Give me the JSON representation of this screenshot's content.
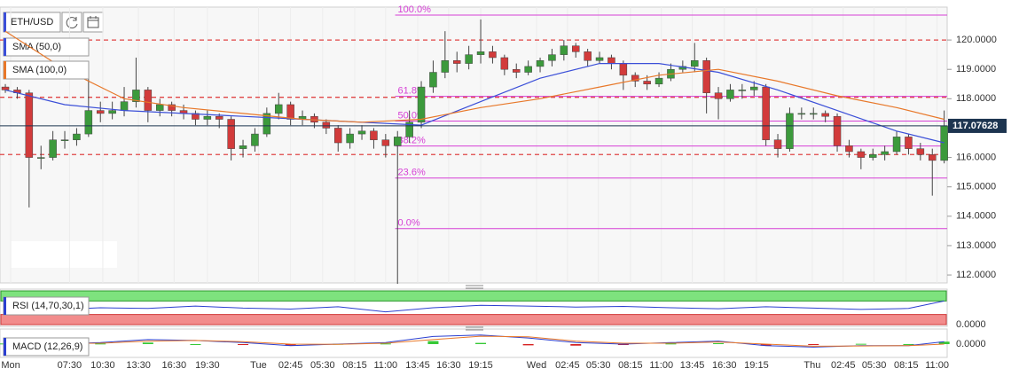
{
  "toolbar": {
    "symbol": "ETH/USD"
  },
  "chart_data": [
    {
      "type": "candlestick",
      "xlim": [
        -0.45,
        79.25
      ],
      "xticks": [
        {
          "value": 0.45,
          "label": "Mon"
        },
        {
          "value": 5.4,
          "label": "07:30"
        },
        {
          "value": 8.2,
          "label": "10:30"
        },
        {
          "value": 11.2,
          "label": "13:30"
        },
        {
          "value": 14.2,
          "label": "16:30"
        },
        {
          "value": 17.0,
          "label": "19:30"
        },
        {
          "value": 21.3,
          "label": "Tue"
        },
        {
          "value": 24.0,
          "label": "02:45"
        },
        {
          "value": 26.7,
          "label": "05:30"
        },
        {
          "value": 29.4,
          "label": "08:15"
        },
        {
          "value": 32.0,
          "label": "11:00"
        },
        {
          "value": 34.7,
          "label": "13:45"
        },
        {
          "value": 37.3,
          "label": "16:30"
        },
        {
          "value": 40.0,
          "label": "19:15"
        },
        {
          "value": 44.7,
          "label": "Wed"
        },
        {
          "value": 47.3,
          "label": "02:45"
        },
        {
          "value": 49.9,
          "label": "05:30"
        },
        {
          "value": 52.6,
          "label": "08:15"
        },
        {
          "value": 55.2,
          "label": "11:00"
        },
        {
          "value": 57.8,
          "label": "13:45"
        },
        {
          "value": 60.5,
          "label": "16:30"
        },
        {
          "value": 63.2,
          "label": "19:15"
        },
        {
          "value": 67.9,
          "label": "Thu"
        },
        {
          "value": 70.5,
          "label": "02:45"
        },
        {
          "value": 73.1,
          "label": "05:30"
        },
        {
          "value": 75.8,
          "label": "08:15"
        },
        {
          "value": 78.4,
          "label": "11:00"
        }
      ],
      "ylim": [
        111.73,
        121.12
      ],
      "yticks": [
        {
          "value": 112,
          "label": "112.0000"
        },
        {
          "value": 113,
          "label": "113.0000"
        },
        {
          "value": 114,
          "label": "114.0000"
        },
        {
          "value": 115,
          "label": "115.0000"
        },
        {
          "value": 116,
          "label": "116.0000"
        },
        {
          "value": 117,
          "label": "117.0000"
        },
        {
          "value": 118,
          "label": "118.0000"
        },
        {
          "value": 119,
          "label": "119.0000"
        },
        {
          "value": 120,
          "label": "120.0000"
        }
      ],
      "up_color": "#3c9a3c",
      "down_color": "#d23b3b",
      "ohlc": [
        [
          118.4,
          118.5,
          118.2,
          118.3
        ],
        [
          118.3,
          118.4,
          118.0,
          118.2
        ],
        [
          118.2,
          118.3,
          114.3,
          116.0
        ],
        [
          116.0,
          116.4,
          115.6,
          116.0
        ],
        [
          116.0,
          116.9,
          115.9,
          116.6
        ],
        [
          116.6,
          116.9,
          116.3,
          116.6
        ],
        [
          116.6,
          117.0,
          116.4,
          116.8
        ],
        [
          116.8,
          118.7,
          116.7,
          117.6
        ],
        [
          117.6,
          117.9,
          117.2,
          117.5
        ],
        [
          117.5,
          117.9,
          117.3,
          117.6
        ],
        [
          117.6,
          118.4,
          117.4,
          117.9
        ],
        [
          117.9,
          119.4,
          117.7,
          118.3
        ],
        [
          118.3,
          118.4,
          117.2,
          117.6
        ],
        [
          117.6,
          118.0,
          117.4,
          117.8
        ],
        [
          117.8,
          117.9,
          117.4,
          117.6
        ],
        [
          117.6,
          117.8,
          117.3,
          117.5
        ],
        [
          117.5,
          117.6,
          117.1,
          117.3
        ],
        [
          117.3,
          117.6,
          117.1,
          117.4
        ],
        [
          117.4,
          117.5,
          117.0,
          117.3
        ],
        [
          117.3,
          117.4,
          115.9,
          116.3
        ],
        [
          116.3,
          116.6,
          116.0,
          116.4
        ],
        [
          116.4,
          117.0,
          116.2,
          116.8
        ],
        [
          116.8,
          117.7,
          116.7,
          117.5
        ],
        [
          117.5,
          118.2,
          117.3,
          117.8
        ],
        [
          117.8,
          117.9,
          117.1,
          117.3
        ],
        [
          117.3,
          117.6,
          117.1,
          117.4
        ],
        [
          117.4,
          117.5,
          117.0,
          117.2
        ],
        [
          117.2,
          117.3,
          116.8,
          117.0
        ],
        [
          117.0,
          117.1,
          116.2,
          116.5
        ],
        [
          116.5,
          117.0,
          116.3,
          116.8
        ],
        [
          116.8,
          117.1,
          116.6,
          116.9
        ],
        [
          116.9,
          117.0,
          116.3,
          116.6
        ],
        [
          116.6,
          116.8,
          116.0,
          116.4
        ],
        [
          116.4,
          116.9,
          111.7,
          116.7
        ],
        [
          116.7,
          117.6,
          116.5,
          117.2
        ],
        [
          117.2,
          118.6,
          117.0,
          118.4
        ],
        [
          118.4,
          119.3,
          118.2,
          118.9
        ],
        [
          118.9,
          120.3,
          118.7,
          119.3
        ],
        [
          119.3,
          119.6,
          118.9,
          119.2
        ],
        [
          119.2,
          119.8,
          119.0,
          119.5
        ],
        [
          119.5,
          120.7,
          119.2,
          119.6
        ],
        [
          119.6,
          119.8,
          119.2,
          119.4
        ],
        [
          119.4,
          119.5,
          118.8,
          119.0
        ],
        [
          119.0,
          119.2,
          118.7,
          118.9
        ],
        [
          118.9,
          119.3,
          118.8,
          119.1
        ],
        [
          119.1,
          119.4,
          118.9,
          119.3
        ],
        [
          119.3,
          119.7,
          119.1,
          119.5
        ],
        [
          119.5,
          120.0,
          119.3,
          119.8
        ],
        [
          119.8,
          119.9,
          119.4,
          119.6
        ],
        [
          119.6,
          119.7,
          119.1,
          119.3
        ],
        [
          119.3,
          119.6,
          119.2,
          119.4
        ],
        [
          119.4,
          119.5,
          119.0,
          119.2
        ],
        [
          119.2,
          119.3,
          118.3,
          118.8
        ],
        [
          118.8,
          118.9,
          118.4,
          118.6
        ],
        [
          118.6,
          118.8,
          118.3,
          118.5
        ],
        [
          118.5,
          118.9,
          118.4,
          118.7
        ],
        [
          118.7,
          119.2,
          118.6,
          119.0
        ],
        [
          119.0,
          119.3,
          118.9,
          119.1
        ],
        [
          119.1,
          119.9,
          118.9,
          119.3
        ],
        [
          119.3,
          119.4,
          117.5,
          118.2
        ],
        [
          118.2,
          118.4,
          117.3,
          118.0
        ],
        [
          118.0,
          118.5,
          117.9,
          118.3
        ],
        [
          118.3,
          118.5,
          118.0,
          118.3
        ],
        [
          118.3,
          118.6,
          118.1,
          118.4
        ],
        [
          118.4,
          118.5,
          116.4,
          116.6
        ],
        [
          116.6,
          116.8,
          116.0,
          116.3
        ],
        [
          116.3,
          117.7,
          116.2,
          117.5
        ],
        [
          117.5,
          117.7,
          117.3,
          117.5
        ],
        [
          117.5,
          117.7,
          117.3,
          117.5
        ],
        [
          117.5,
          117.6,
          117.2,
          117.4
        ],
        [
          117.4,
          117.5,
          116.2,
          116.4
        ],
        [
          116.4,
          116.6,
          116.0,
          116.2
        ],
        [
          116.2,
          116.3,
          115.6,
          116.0
        ],
        [
          116.0,
          116.3,
          115.9,
          116.1
        ],
        [
          116.1,
          116.4,
          115.9,
          116.2
        ],
        [
          116.2,
          116.9,
          116.1,
          116.7
        ],
        [
          116.7,
          116.8,
          116.1,
          116.3
        ],
        [
          116.3,
          116.5,
          115.9,
          116.1
        ],
        [
          116.1,
          116.3,
          114.7,
          115.9
        ],
        [
          115.9,
          117.6,
          115.8,
          117.08
        ]
      ],
      "series": [
        {
          "name": "SMA (50,0)",
          "color": "#3b4fd8",
          "x": [
            0,
            5,
            10,
            15,
            20,
            25,
            30,
            35,
            40,
            45,
            50,
            55,
            60,
            65,
            70,
            75,
            79
          ],
          "values": [
            118.3,
            117.8,
            117.6,
            117.5,
            117.4,
            117.3,
            117.2,
            117.1,
            117.9,
            118.7,
            119.2,
            119.2,
            118.9,
            118.3,
            117.6,
            116.9,
            116.5
          ]
        },
        {
          "name": "SMA (100,0)",
          "color": "#e8782a",
          "x": [
            0,
            5,
            10,
            15,
            20,
            25,
            30,
            35,
            40,
            45,
            50,
            55,
            60,
            65,
            70,
            75,
            79
          ],
          "values": [
            120.3,
            119.0,
            118.0,
            117.7,
            117.5,
            117.3,
            117.2,
            117.3,
            117.7,
            118.0,
            118.4,
            118.8,
            119.0,
            118.6,
            118.1,
            117.7,
            117.3
          ]
        }
      ],
      "hlines": [
        120.0,
        118.05,
        116.1
      ],
      "hline_color": "#e04545",
      "fib_color": "#d63fd6",
      "fib_start": 32.8,
      "fib": [
        {
          "value": 120.85,
          "label": "100.0%"
        },
        {
          "value": 118.08,
          "label": "61.8%"
        },
        {
          "value": 117.24,
          "label": "50.0%"
        },
        {
          "value": 116.39,
          "label": "38.2%"
        },
        {
          "value": 115.3,
          "label": "23.6%"
        },
        {
          "value": 113.58,
          "label": "0.0%"
        }
      ],
      "last": {
        "value": 117.07628,
        "label": "117.07628"
      }
    },
    {
      "type": "rsi",
      "name": "RSI (14,70,30,1)",
      "ylim": [
        0,
        100
      ],
      "bands": [
        70,
        30
      ],
      "yticks": [
        {
          "value": 0,
          "label": "0.0000"
        }
      ],
      "color": "#2b3fd0",
      "x": [
        0,
        4,
        8,
        12,
        16,
        20,
        24,
        28,
        32,
        36,
        40,
        44,
        48,
        52,
        56,
        60,
        64,
        68,
        72,
        76,
        79
      ],
      "values": [
        52,
        44,
        50,
        48,
        55,
        49,
        46,
        53,
        38,
        50,
        57,
        55,
        52,
        54,
        50,
        47,
        53,
        49,
        45,
        48,
        70
      ]
    },
    {
      "type": "macd",
      "name": "MACD (12,26,9)",
      "ylim": [
        -0.35,
        0.35
      ],
      "yticks": [
        {
          "value": 0,
          "label": "0.0000"
        }
      ],
      "x": [
        0,
        4,
        8,
        12,
        16,
        20,
        24,
        28,
        32,
        36,
        40,
        44,
        48,
        52,
        56,
        60,
        64,
        68,
        72,
        76,
        79
      ],
      "macd": [
        0.05,
        0.0,
        0.05,
        0.15,
        0.12,
        0.05,
        -0.05,
        0.0,
        0.05,
        0.25,
        0.3,
        0.2,
        0.05,
        0.0,
        0.05,
        0.1,
        -0.05,
        -0.1,
        -0.05,
        -0.05,
        0.08
      ],
      "signal": [
        0.03,
        0.02,
        0.03,
        0.1,
        0.12,
        0.08,
        0.0,
        -0.01,
        0.03,
        0.15,
        0.26,
        0.24,
        0.1,
        0.03,
        0.03,
        0.07,
        0.0,
        -0.07,
        -0.06,
        -0.05,
        0.0
      ],
      "histogram": [
        0.02,
        -0.02,
        0.02,
        0.05,
        0.0,
        -0.03,
        -0.05,
        0.01,
        0.02,
        0.1,
        0.04,
        -0.04,
        -0.05,
        -0.03,
        0.02,
        0.03,
        -0.05,
        -0.03,
        0.01,
        0.0,
        0.08
      ],
      "macd_color": "#2b3fd0",
      "signal_color": "#e8782a",
      "pos_color": "#36c936",
      "neg_color": "#d62020"
    }
  ]
}
